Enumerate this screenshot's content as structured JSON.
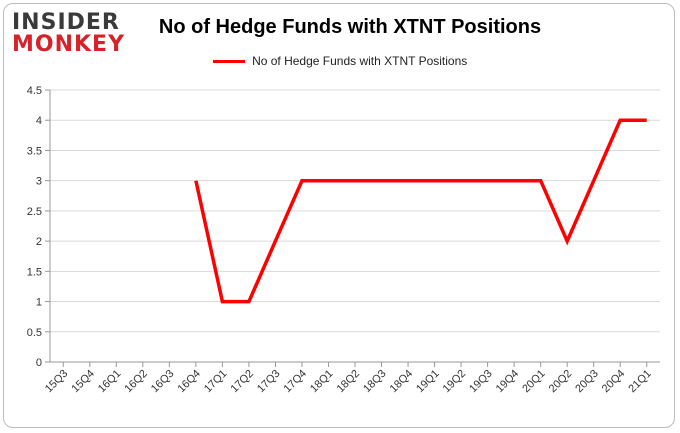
{
  "logo": {
    "line1": "INSIDER",
    "line2": "MONKEY"
  },
  "colors": {
    "series": "#ff0000",
    "grid": "#d9d9d9",
    "logo_dark": "#3a3a3a",
    "logo_red": "#d6232a"
  },
  "chart_data": {
    "type": "line",
    "title": "No of Hedge Funds with XTNT Positions",
    "xlabel": "",
    "ylabel": "",
    "legend_position": "top",
    "grid": true,
    "ylim": [
      0,
      4.5
    ],
    "yticks": [
      "0",
      "0.5",
      "1",
      "1.5",
      "2",
      "2.5",
      "3",
      "3.5",
      "4",
      "4.5"
    ],
    "categories": [
      "15Q3",
      "15Q4",
      "16Q1",
      "16Q2",
      "16Q3",
      "16Q4",
      "17Q1",
      "17Q2",
      "17Q3",
      "17Q4",
      "18Q1",
      "18Q2",
      "18Q3",
      "18Q4",
      "19Q1",
      "19Q2",
      "19Q3",
      "19Q4",
      "20Q1",
      "20Q2",
      "20Q3",
      "20Q4",
      "21Q1"
    ],
    "series": [
      {
        "name": "No of Hedge Funds with XTNT Positions",
        "values": [
          null,
          null,
          null,
          null,
          null,
          3,
          1,
          1,
          2,
          3,
          3,
          3,
          3,
          3,
          3,
          3,
          3,
          3,
          3,
          2,
          3,
          4,
          4
        ]
      }
    ]
  }
}
